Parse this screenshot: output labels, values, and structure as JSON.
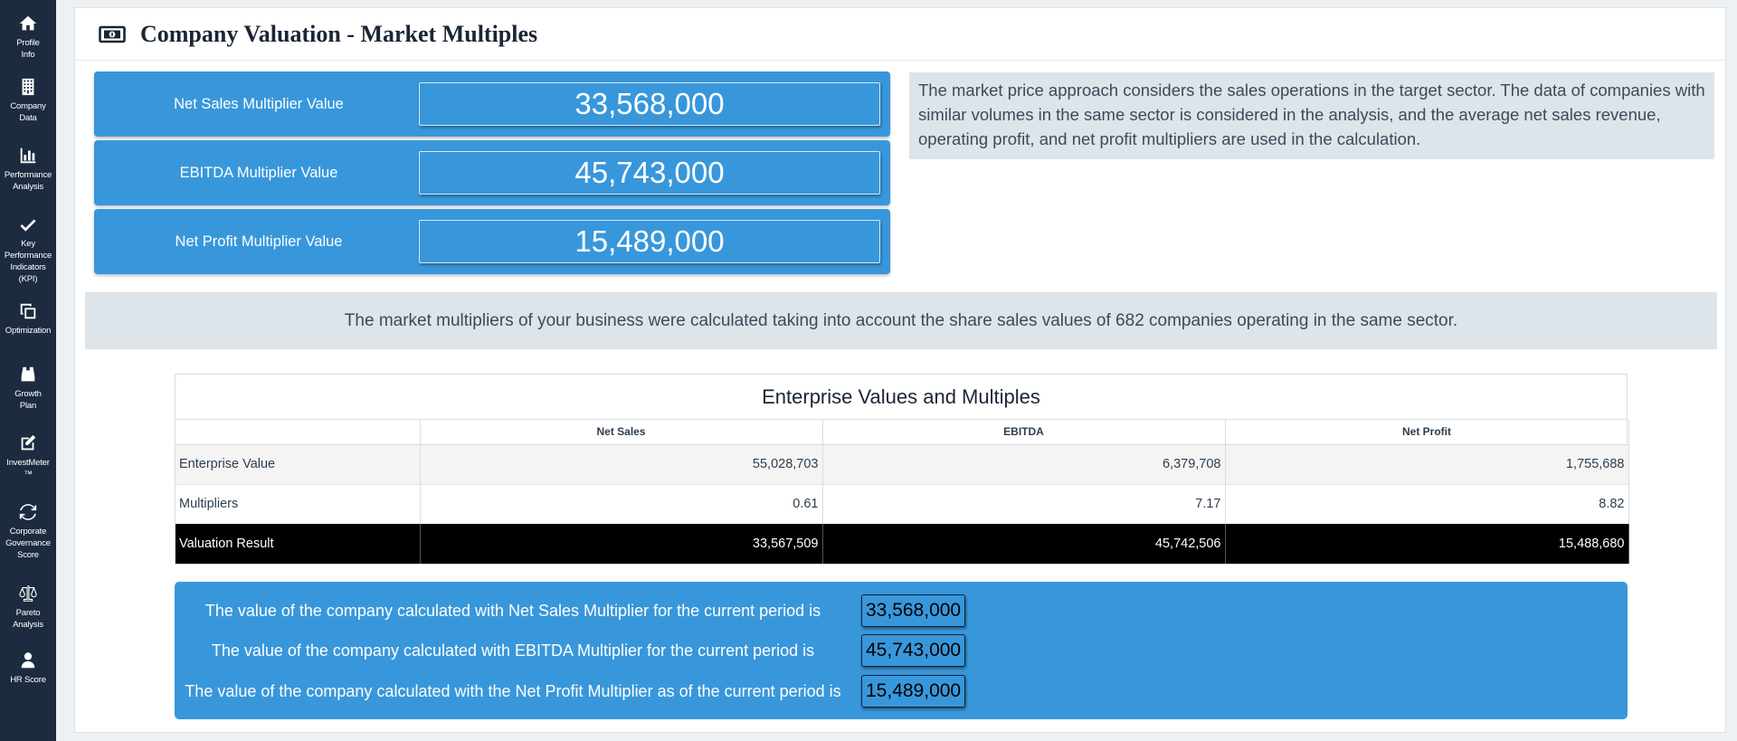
{
  "sidebar": {
    "items": [
      {
        "label": "Profile\nInfo",
        "icon": "home-icon"
      },
      {
        "label": "Company\nData",
        "icon": "building-icon"
      },
      {
        "label": "Performance\nAnalysis",
        "icon": "bar-chart-icon"
      },
      {
        "label": "Key\nPerformance\nIndicators\n(KPI)",
        "icon": "check-icon"
      },
      {
        "label": "Optimization",
        "icon": "copy-icon"
      },
      {
        "label": "Growth\nPlan",
        "icon": "binoculars-icon"
      },
      {
        "label": "InvestMeter\n™",
        "icon": "edit-icon"
      },
      {
        "label": "Corporate\nGovernance\nScore",
        "icon": "refresh-icon"
      },
      {
        "label": "Pareto\nAnalysis",
        "icon": "scale-icon"
      },
      {
        "label": "HR Score",
        "icon": "user-icon"
      }
    ]
  },
  "page": {
    "title": "Company Valuation - Market Multiples",
    "title_icon": "money-icon"
  },
  "multipliers": [
    {
      "label": "Net Sales Multiplier Value",
      "value": "33,568,000"
    },
    {
      "label": "EBITDA Multiplier Value",
      "value": "45,743,000"
    },
    {
      "label": "Net Profit Multiplier Value",
      "value": "15,489,000"
    }
  ],
  "description": "The market price approach considers the sales operations in the target sector. The data of companies with similar volumes in the same sector is considered in the analysis, and the average net sales revenue, operating profit, and net profit multipliers are used in the calculation.",
  "note": "The market multipliers of your business were calculated taking into account the share sales values of 682 companies operating in the same sector.",
  "table": {
    "title": "Enterprise Values and Multiples",
    "headers": [
      "",
      "Net Sales",
      "EBITDA",
      "Net Profit"
    ],
    "rows": [
      {
        "label": "Enterprise Value",
        "values": [
          "55,028,703",
          "6,379,708",
          "1,755,688"
        ]
      },
      {
        "label": "Multipliers",
        "values": [
          "0.61",
          "7.17",
          "8.82"
        ]
      },
      {
        "label": "Valuation Result",
        "values": [
          "33,567,509",
          "45,742,506",
          "15,488,680"
        ]
      }
    ]
  },
  "summary": [
    {
      "text": "The value of the company calculated with Net Sales Multiplier for the current period is",
      "value": "33,568,000"
    },
    {
      "text": "The value of the company calculated with EBITDA Multiplier for the current period is",
      "value": "45,743,000"
    },
    {
      "text": "The value of the company calculated with the Net Profit Multiplier as of the current period is",
      "value": "15,489,000"
    }
  ],
  "colors": {
    "sidebar_bg": "#1c2b3f",
    "accent_blue": "#3897db",
    "info_bg": "#dde4ea",
    "total_row_bg": "#000000"
  }
}
